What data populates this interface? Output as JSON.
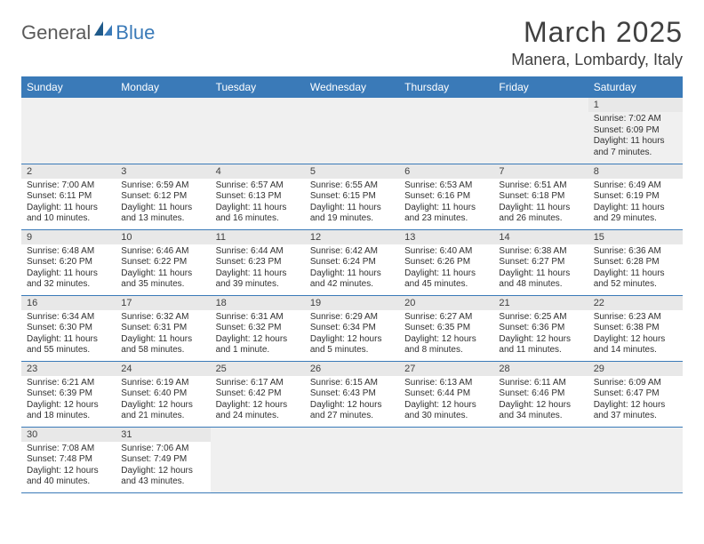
{
  "brand": {
    "part1": "General",
    "part2": "Blue"
  },
  "title": "March 2025",
  "location": "Manera, Lombardy, Italy",
  "colors": {
    "header_bg": "#3a7ab8",
    "header_fg": "#ffffff",
    "daynum_bg": "#e8e8e8",
    "text": "#303030",
    "border": "#3a7ab8",
    "firstrow_bg": "#f0f0f0"
  },
  "weekdays": [
    "Sunday",
    "Monday",
    "Tuesday",
    "Wednesday",
    "Thursday",
    "Friday",
    "Saturday"
  ],
  "weeks": [
    [
      null,
      null,
      null,
      null,
      null,
      null,
      {
        "n": "1",
        "sr": "7:02 AM",
        "ss": "6:09 PM",
        "dl": "11 hours and 7 minutes."
      }
    ],
    [
      {
        "n": "2",
        "sr": "7:00 AM",
        "ss": "6:11 PM",
        "dl": "11 hours and 10 minutes."
      },
      {
        "n": "3",
        "sr": "6:59 AM",
        "ss": "6:12 PM",
        "dl": "11 hours and 13 minutes."
      },
      {
        "n": "4",
        "sr": "6:57 AM",
        "ss": "6:13 PM",
        "dl": "11 hours and 16 minutes."
      },
      {
        "n": "5",
        "sr": "6:55 AM",
        "ss": "6:15 PM",
        "dl": "11 hours and 19 minutes."
      },
      {
        "n": "6",
        "sr": "6:53 AM",
        "ss": "6:16 PM",
        "dl": "11 hours and 23 minutes."
      },
      {
        "n": "7",
        "sr": "6:51 AM",
        "ss": "6:18 PM",
        "dl": "11 hours and 26 minutes."
      },
      {
        "n": "8",
        "sr": "6:49 AM",
        "ss": "6:19 PM",
        "dl": "11 hours and 29 minutes."
      }
    ],
    [
      {
        "n": "9",
        "sr": "6:48 AM",
        "ss": "6:20 PM",
        "dl": "11 hours and 32 minutes."
      },
      {
        "n": "10",
        "sr": "6:46 AM",
        "ss": "6:22 PM",
        "dl": "11 hours and 35 minutes."
      },
      {
        "n": "11",
        "sr": "6:44 AM",
        "ss": "6:23 PM",
        "dl": "11 hours and 39 minutes."
      },
      {
        "n": "12",
        "sr": "6:42 AM",
        "ss": "6:24 PM",
        "dl": "11 hours and 42 minutes."
      },
      {
        "n": "13",
        "sr": "6:40 AM",
        "ss": "6:26 PM",
        "dl": "11 hours and 45 minutes."
      },
      {
        "n": "14",
        "sr": "6:38 AM",
        "ss": "6:27 PM",
        "dl": "11 hours and 48 minutes."
      },
      {
        "n": "15",
        "sr": "6:36 AM",
        "ss": "6:28 PM",
        "dl": "11 hours and 52 minutes."
      }
    ],
    [
      {
        "n": "16",
        "sr": "6:34 AM",
        "ss": "6:30 PM",
        "dl": "11 hours and 55 minutes."
      },
      {
        "n": "17",
        "sr": "6:32 AM",
        "ss": "6:31 PM",
        "dl": "11 hours and 58 minutes."
      },
      {
        "n": "18",
        "sr": "6:31 AM",
        "ss": "6:32 PM",
        "dl": "12 hours and 1 minute."
      },
      {
        "n": "19",
        "sr": "6:29 AM",
        "ss": "6:34 PM",
        "dl": "12 hours and 5 minutes."
      },
      {
        "n": "20",
        "sr": "6:27 AM",
        "ss": "6:35 PM",
        "dl": "12 hours and 8 minutes."
      },
      {
        "n": "21",
        "sr": "6:25 AM",
        "ss": "6:36 PM",
        "dl": "12 hours and 11 minutes."
      },
      {
        "n": "22",
        "sr": "6:23 AM",
        "ss": "6:38 PM",
        "dl": "12 hours and 14 minutes."
      }
    ],
    [
      {
        "n": "23",
        "sr": "6:21 AM",
        "ss": "6:39 PM",
        "dl": "12 hours and 18 minutes."
      },
      {
        "n": "24",
        "sr": "6:19 AM",
        "ss": "6:40 PM",
        "dl": "12 hours and 21 minutes."
      },
      {
        "n": "25",
        "sr": "6:17 AM",
        "ss": "6:42 PM",
        "dl": "12 hours and 24 minutes."
      },
      {
        "n": "26",
        "sr": "6:15 AM",
        "ss": "6:43 PM",
        "dl": "12 hours and 27 minutes."
      },
      {
        "n": "27",
        "sr": "6:13 AM",
        "ss": "6:44 PM",
        "dl": "12 hours and 30 minutes."
      },
      {
        "n": "28",
        "sr": "6:11 AM",
        "ss": "6:46 PM",
        "dl": "12 hours and 34 minutes."
      },
      {
        "n": "29",
        "sr": "6:09 AM",
        "ss": "6:47 PM",
        "dl": "12 hours and 37 minutes."
      }
    ],
    [
      {
        "n": "30",
        "sr": "7:08 AM",
        "ss": "7:48 PM",
        "dl": "12 hours and 40 minutes."
      },
      {
        "n": "31",
        "sr": "7:06 AM",
        "ss": "7:49 PM",
        "dl": "12 hours and 43 minutes."
      },
      null,
      null,
      null,
      null,
      null
    ]
  ],
  "labels": {
    "sunrise": "Sunrise:",
    "sunset": "Sunset:",
    "daylight": "Daylight:"
  }
}
